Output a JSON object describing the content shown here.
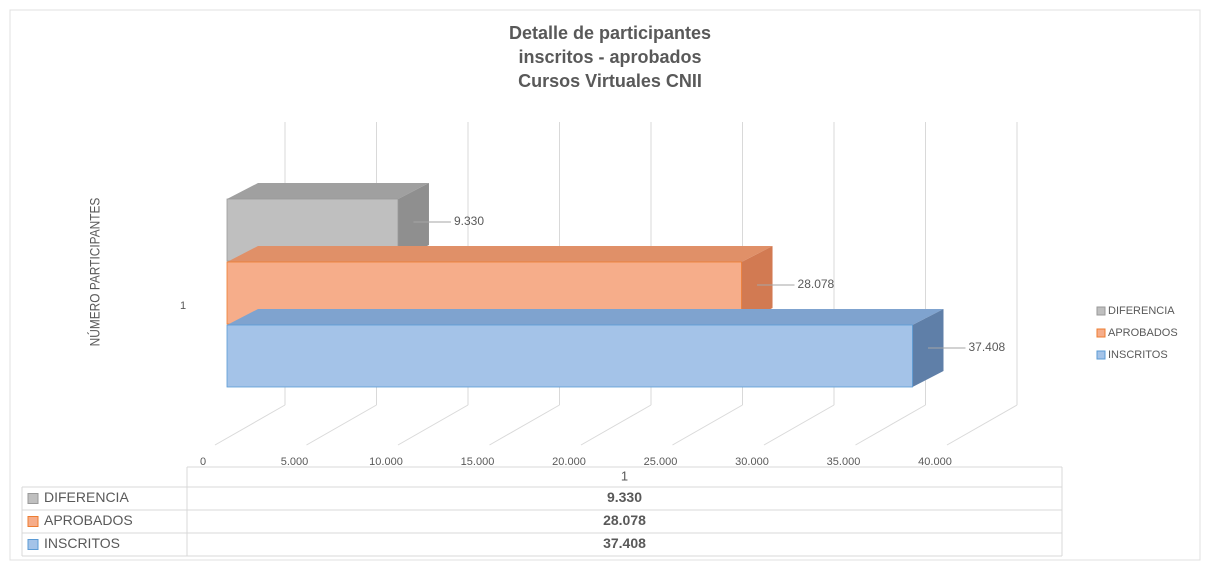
{
  "chart_data": {
    "type": "bar3d_horizontal",
    "title": [
      "Detalle de participantes",
      "inscritos - aprobados",
      "Cursos Virtuales CNII"
    ],
    "y_axis_label": "NÚMERO PARTICIPANTES",
    "categories": [
      "1"
    ],
    "series": [
      {
        "name": "DIFERENCIA",
        "color": "#bfbfbf",
        "values": [
          9330
        ],
        "value_labels": [
          "9.330"
        ]
      },
      {
        "name": "APROBADOS",
        "color": "#f6ad8a",
        "values": [
          28078
        ],
        "value_labels": [
          "28.078"
        ]
      },
      {
        "name": "INSCRITOS",
        "color": "#a4c3e8",
        "values": [
          37408
        ],
        "value_labels": [
          "37.408"
        ]
      }
    ],
    "xlim": [
      0,
      40000
    ],
    "xticks": [
      0,
      {
        "value": 5000,
        "label": "5.000"
      },
      {
        "value": 10000,
        "label": "10.000"
      },
      {
        "value": 15000,
        "label": "15.000"
      },
      {
        "value": 20000,
        "label": "20.000"
      },
      {
        "value": 25000,
        "label": "25.000"
      },
      {
        "value": 30000,
        "label": "30.000"
      },
      {
        "value": 35000,
        "label": "35.000"
      },
      {
        "value": 40000,
        "label": "40.000"
      }
    ],
    "grid": true,
    "legend": "right",
    "data_table": true
  }
}
